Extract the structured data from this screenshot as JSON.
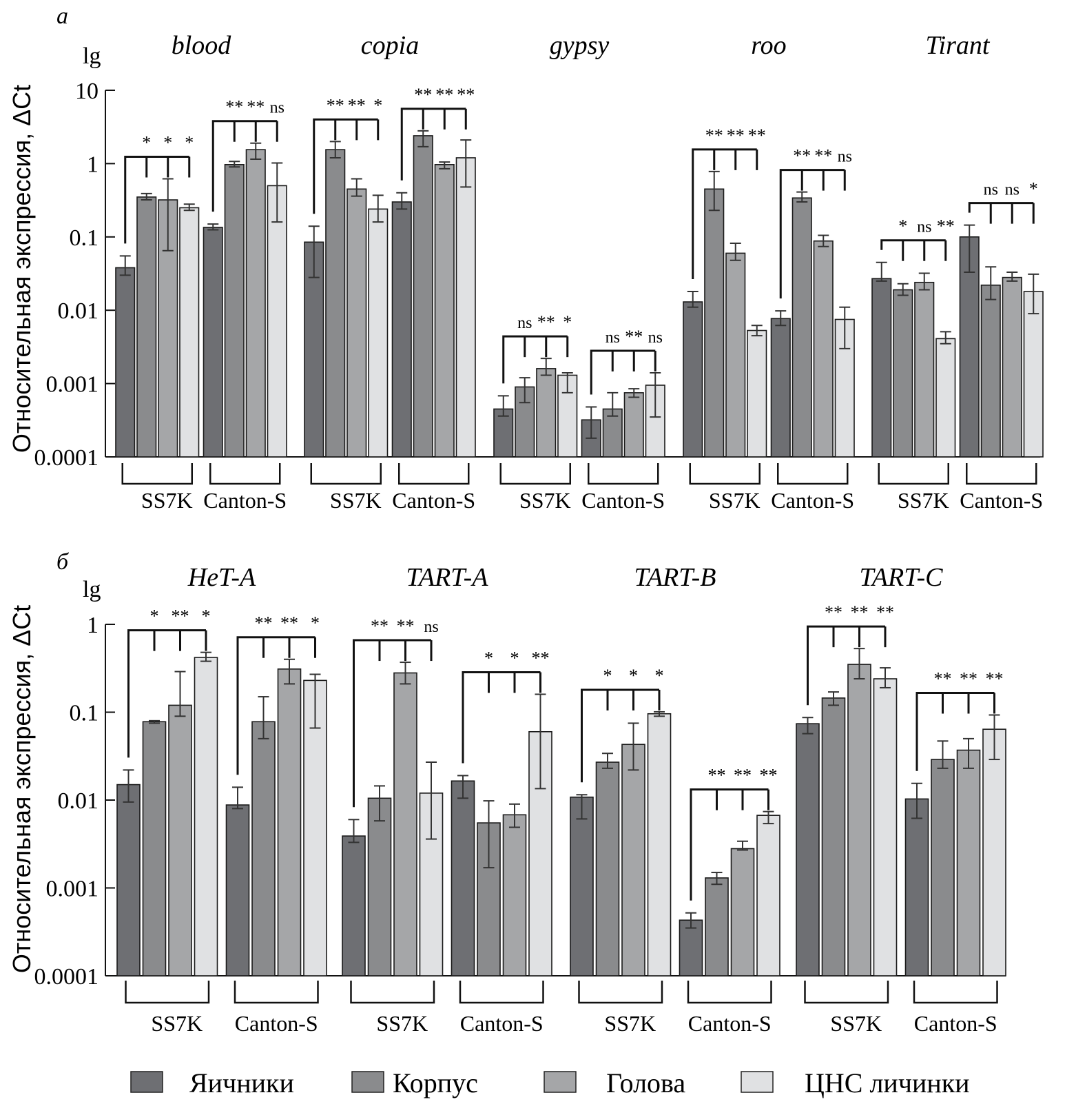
{
  "figure": {
    "panel_labels": [
      "а",
      "б"
    ],
    "y_axis_label": "Относительная экспрессия, ΔCt",
    "y_axis_prefix": "lg",
    "strain_labels": [
      "SS7K",
      "Canton-S"
    ]
  },
  "legend": {
    "items": [
      {
        "label": "Яичники",
        "color": "#6e6f73"
      },
      {
        "label": "Корпус",
        "color": "#8a8b8d"
      },
      {
        "label": "Голова",
        "color": "#a5a6a8"
      },
      {
        "label": "ЦНС личинки",
        "color": "#e0e1e3"
      }
    ]
  },
  "chart_data": [
    {
      "type": "bar",
      "panel": "а",
      "scale": "log",
      "ylabel": "Относительная экспрессия, ΔCt",
      "yprefix": "lg",
      "ylim": [
        0.0001,
        10
      ],
      "yticks": [
        "10",
        "1",
        "0.1",
        "0.01",
        "0.001",
        "0.0001"
      ],
      "ytick_values": [
        10,
        1,
        0.1,
        0.01,
        0.001,
        0.0001
      ],
      "series_names": [
        "Яичники",
        "Корпус",
        "Голова",
        "ЦНС личинки"
      ],
      "groups": [
        {
          "gene": "blood",
          "strains": [
            {
              "strain": "SS7K",
              "values": [
                0.038,
                0.35,
                0.32,
                0.25
              ],
              "err_low": [
                0.03,
                0.32,
                0.065,
                0.23
              ],
              "err_high": [
                0.055,
                0.39,
                0.62,
                0.28
              ],
              "significance": [
                "*",
                "*",
                "*"
              ]
            },
            {
              "strain": "Canton-S",
              "values": [
                0.135,
                0.97,
                1.55,
                0.5
              ],
              "err_low": [
                0.125,
                0.9,
                1.15,
                0.16
              ],
              "err_high": [
                0.15,
                1.07,
                1.9,
                1.02
              ],
              "significance": [
                "**",
                "**",
                "ns"
              ]
            }
          ]
        },
        {
          "gene": "copia",
          "strains": [
            {
              "strain": "SS7K",
              "values": [
                0.085,
                1.55,
                0.45,
                0.24
              ],
              "err_low": [
                0.028,
                1.2,
                0.36,
                0.16
              ],
              "err_high": [
                0.14,
                2.0,
                0.62,
                0.37
              ],
              "significance": [
                "**",
                "**",
                "*"
              ]
            },
            {
              "strain": "Canton-S",
              "values": [
                0.3,
                2.4,
                0.97,
                1.2
              ],
              "err_low": [
                0.24,
                1.7,
                0.85,
                0.48
              ],
              "err_high": [
                0.4,
                2.8,
                1.05,
                2.1
              ],
              "significance": [
                "**",
                "**",
                "**"
              ]
            }
          ]
        },
        {
          "gene": "gypsy",
          "strains": [
            {
              "strain": "SS7K",
              "values": [
                0.00045,
                0.0009,
                0.0016,
                0.0013
              ],
              "err_low": [
                0.00036,
                0.00055,
                0.0013,
                0.00075
              ],
              "err_high": [
                0.00068,
                0.0012,
                0.0022,
                0.0014
              ],
              "significance": [
                "ns",
                "**",
                "*"
              ]
            },
            {
              "strain": "Canton-S",
              "values": [
                0.00032,
                0.00045,
                0.00075,
                0.00095
              ],
              "err_low": [
                0.00018,
                0.00036,
                0.00065,
                0.00035
              ],
              "err_high": [
                0.00048,
                0.00075,
                0.00085,
                0.0014
              ],
              "significance": [
                "ns",
                "**",
                "ns"
              ]
            }
          ]
        },
        {
          "gene": "roo",
          "strains": [
            {
              "strain": "SS7K",
              "values": [
                0.013,
                0.45,
                0.06,
                0.0053
              ],
              "err_low": [
                0.011,
                0.23,
                0.048,
                0.0045
              ],
              "err_high": [
                0.018,
                0.78,
                0.082,
                0.0062
              ],
              "significance": [
                "**",
                "**",
                "**"
              ]
            },
            {
              "strain": "Canton-S",
              "values": [
                0.0077,
                0.34,
                0.088,
                0.0075
              ],
              "err_low": [
                0.0062,
                0.3,
                0.074,
                0.003
              ],
              "err_high": [
                0.0098,
                0.41,
                0.105,
                0.011
              ],
              "significance": [
                "**",
                "**",
                "ns"
              ]
            }
          ]
        },
        {
          "gene": "Tirant",
          "strains": [
            {
              "strain": "SS7K",
              "values": [
                0.027,
                0.019,
                0.024,
                0.0041
              ],
              "err_low": [
                0.025,
                0.016,
                0.019,
                0.0035
              ],
              "err_high": [
                0.045,
                0.023,
                0.032,
                0.0051
              ],
              "significance": [
                "*",
                "ns",
                "**"
              ]
            },
            {
              "strain": "Canton-S",
              "values": [
                0.1,
                0.022,
                0.028,
                0.018
              ],
              "err_low": [
                0.033,
                0.014,
                0.025,
                0.009
              ],
              "err_high": [
                0.145,
                0.039,
                0.033,
                0.031
              ],
              "significance": [
                "ns",
                "ns",
                "*"
              ]
            }
          ]
        }
      ]
    },
    {
      "type": "bar",
      "panel": "б",
      "scale": "log",
      "ylabel": "Относительная экспрессия, ΔCt",
      "yprefix": "lg",
      "ylim": [
        0.0001,
        1
      ],
      "yticks": [
        "1",
        "0.1",
        "0.01",
        "0.001",
        "0.0001"
      ],
      "ytick_values": [
        1,
        0.1,
        0.01,
        0.001,
        0.0001
      ],
      "series_names": [
        "Яичники",
        "Корпус",
        "Голова",
        "ЦНС личинки"
      ],
      "groups": [
        {
          "gene": "HeT-A",
          "strains": [
            {
              "strain": "SS7K",
              "values": [
                0.015,
                0.078,
                0.12,
                0.42
              ],
              "err_low": [
                0.0095,
                0.075,
                0.09,
                0.38
              ],
              "err_high": [
                0.022,
                0.08,
                0.29,
                0.48
              ],
              "significance": [
                "*",
                "**",
                "*"
              ]
            },
            {
              "strain": "Canton-S",
              "values": [
                0.0088,
                0.078,
                0.31,
                0.23
              ],
              "err_low": [
                0.008,
                0.05,
                0.21,
                0.066
              ],
              "err_high": [
                0.014,
                0.15,
                0.4,
                0.27
              ],
              "significance": [
                "**",
                "**",
                "*"
              ]
            }
          ]
        },
        {
          "gene": "TART-A",
          "strains": [
            {
              "strain": "SS7K",
              "values": [
                0.0039,
                0.0105,
                0.28,
                0.012
              ],
              "err_low": [
                0.0033,
                0.0058,
                0.21,
                0.0036
              ],
              "err_high": [
                0.006,
                0.0145,
                0.37,
                0.027
              ],
              "significance": [
                "**",
                "**",
                "ns"
              ]
            },
            {
              "strain": "Canton-S",
              "values": [
                0.0165,
                0.0055,
                0.0068,
                0.06
              ],
              "err_low": [
                0.0105,
                0.0017,
                0.0049,
                0.0135
              ],
              "err_high": [
                0.019,
                0.0098,
                0.009,
                0.16
              ],
              "significance": [
                "*",
                "*",
                "**"
              ]
            }
          ]
        },
        {
          "gene": "TART-B",
          "strains": [
            {
              "strain": "SS7K",
              "values": [
                0.0108,
                0.027,
                0.043,
                0.096
              ],
              "err_low": [
                0.0061,
                0.023,
                0.022,
                0.09
              ],
              "err_high": [
                0.0115,
                0.034,
                0.075,
                0.101
              ],
              "significance": [
                "*",
                "*",
                "*"
              ]
            },
            {
              "strain": "Canton-S",
              "values": [
                0.00043,
                0.0013,
                0.0028,
                0.0067
              ],
              "err_low": [
                0.00035,
                0.0011,
                0.0027,
                0.0054
              ],
              "err_high": [
                0.00052,
                0.0015,
                0.0034,
                0.0074
              ],
              "significance": [
                "**",
                "**",
                "**"
              ]
            }
          ]
        },
        {
          "gene": "TART-C",
          "strains": [
            {
              "strain": "SS7K",
              "values": [
                0.074,
                0.145,
                0.35,
                0.24
              ],
              "err_low": [
                0.057,
                0.12,
                0.24,
                0.19
              ],
              "err_high": [
                0.087,
                0.17,
                0.53,
                0.32
              ],
              "significance": [
                "**",
                "**",
                "**"
              ]
            },
            {
              "strain": "Canton-S",
              "values": [
                0.0103,
                0.029,
                0.037,
                0.064
              ],
              "err_low": [
                0.0062,
                0.023,
                0.023,
                0.029
              ],
              "err_high": [
                0.0155,
                0.047,
                0.05,
                0.093
              ],
              "significance": [
                "**",
                "**",
                "**"
              ]
            }
          ]
        }
      ]
    }
  ]
}
